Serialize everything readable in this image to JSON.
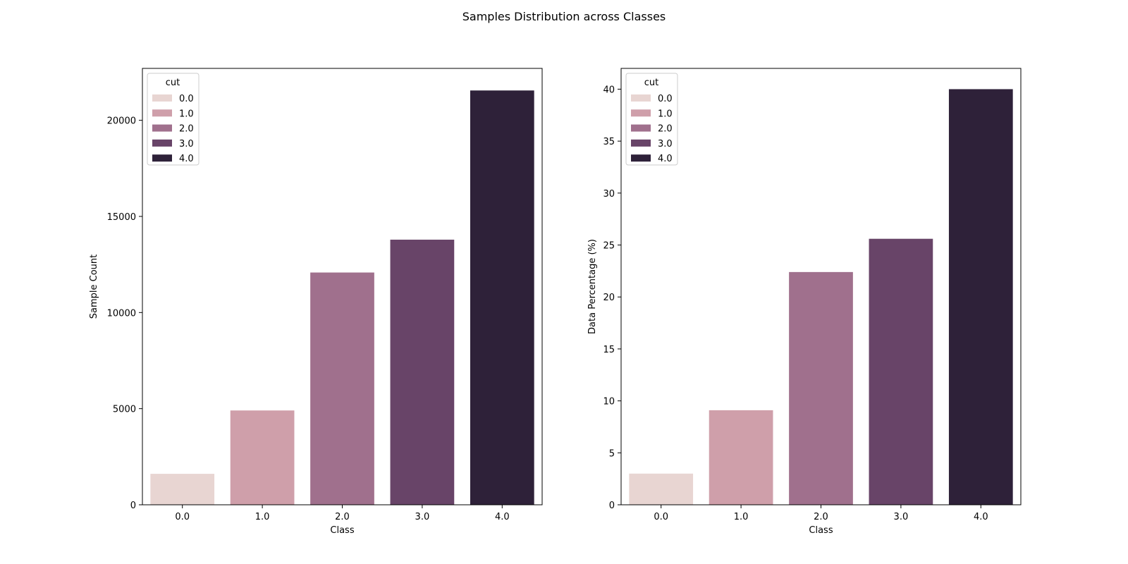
{
  "figure": {
    "suptitle": "Samples Distribution across Classes"
  },
  "chart_data": [
    {
      "type": "bar",
      "title": "",
      "xlabel": "Class",
      "ylabel": "Sample Count",
      "categories": [
        "0.0",
        "1.0",
        "2.0",
        "3.0",
        "4.0"
      ],
      "values": [
        1610,
        4906,
        12082,
        13791,
        21551
      ],
      "ylim": [
        0,
        22700
      ],
      "yticks": [
        0,
        5000,
        10000,
        15000,
        20000
      ],
      "colors": [
        "#e8d5d2",
        "#cf9faa",
        "#a0708d",
        "#684468",
        "#2e2139"
      ],
      "grid": false,
      "legend": {
        "title": "cut",
        "position": "upper-left",
        "entries": [
          "0.0",
          "1.0",
          "2.0",
          "3.0",
          "4.0"
        ]
      }
    },
    {
      "type": "bar",
      "title": "",
      "xlabel": "Class",
      "ylabel": "Data Percentage (%)",
      "categories": [
        "0.0",
        "1.0",
        "2.0",
        "3.0",
        "4.0"
      ],
      "values": [
        3.0,
        9.1,
        22.4,
        25.6,
        40.0
      ],
      "ylim": [
        0,
        42
      ],
      "yticks": [
        0,
        5,
        10,
        15,
        20,
        25,
        30,
        35,
        40
      ],
      "colors": [
        "#e8d5d2",
        "#cf9faa",
        "#a0708d",
        "#684468",
        "#2e2139"
      ],
      "grid": false,
      "legend": {
        "title": "cut",
        "position": "upper-left",
        "entries": [
          "0.0",
          "1.0",
          "2.0",
          "3.0",
          "4.0"
        ]
      }
    }
  ]
}
